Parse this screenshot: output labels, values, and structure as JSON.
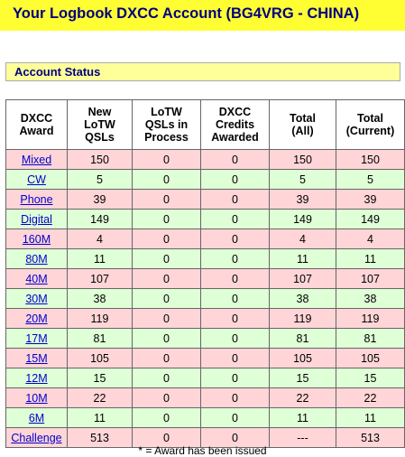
{
  "header": {
    "title": "Your Logbook DXCC Account (BG4VRG - CHINA)"
  },
  "section": {
    "label": "Account Status"
  },
  "colors": {
    "title_bg": "#fffe33",
    "section_bg": "#ffff99",
    "row_pink": "#ffd5d8",
    "row_green": "#dfffd6",
    "link": "#0000cc",
    "title_text": "#000080"
  },
  "table": {
    "columns": [
      [
        "DXCC",
        "Award"
      ],
      [
        "New",
        "LoTW",
        "QSLs"
      ],
      [
        "LoTW",
        "QSLs in",
        "Process"
      ],
      [
        "DXCC",
        "Credits",
        "Awarded"
      ],
      [
        "Total",
        "(All)"
      ],
      [
        "Total",
        "(Current)"
      ]
    ],
    "rows": [
      {
        "award": "Mixed",
        "new": "150",
        "process": "0",
        "credits": "0",
        "total_all": "150",
        "total_current": "150"
      },
      {
        "award": "CW",
        "new": "5",
        "process": "0",
        "credits": "0",
        "total_all": "5",
        "total_current": "5"
      },
      {
        "award": "Phone",
        "new": "39",
        "process": "0",
        "credits": "0",
        "total_all": "39",
        "total_current": "39"
      },
      {
        "award": "Digital",
        "new": "149",
        "process": "0",
        "credits": "0",
        "total_all": "149",
        "total_current": "149"
      },
      {
        "award": "160M",
        "new": "4",
        "process": "0",
        "credits": "0",
        "total_all": "4",
        "total_current": "4"
      },
      {
        "award": "80M",
        "new": "11",
        "process": "0",
        "credits": "0",
        "total_all": "11",
        "total_current": "11"
      },
      {
        "award": "40M",
        "new": "107",
        "process": "0",
        "credits": "0",
        "total_all": "107",
        "total_current": "107"
      },
      {
        "award": "30M",
        "new": "38",
        "process": "0",
        "credits": "0",
        "total_all": "38",
        "total_current": "38"
      },
      {
        "award": "20M",
        "new": "119",
        "process": "0",
        "credits": "0",
        "total_all": "119",
        "total_current": "119"
      },
      {
        "award": "17M",
        "new": "81",
        "process": "0",
        "credits": "0",
        "total_all": "81",
        "total_current": "81"
      },
      {
        "award": "15M",
        "new": "105",
        "process": "0",
        "credits": "0",
        "total_all": "105",
        "total_current": "105"
      },
      {
        "award": "12M",
        "new": "15",
        "process": "0",
        "credits": "0",
        "total_all": "15",
        "total_current": "15"
      },
      {
        "award": "10M",
        "new": "22",
        "process": "0",
        "credits": "0",
        "total_all": "22",
        "total_current": "22"
      },
      {
        "award": "6M",
        "new": "11",
        "process": "0",
        "credits": "0",
        "total_all": "11",
        "total_current": "11"
      },
      {
        "award": "Challenge",
        "new": "513",
        "process": "0",
        "credits": "0",
        "total_all": "---",
        "total_current": "513"
      }
    ]
  },
  "footnote": "* = Award has been issued"
}
